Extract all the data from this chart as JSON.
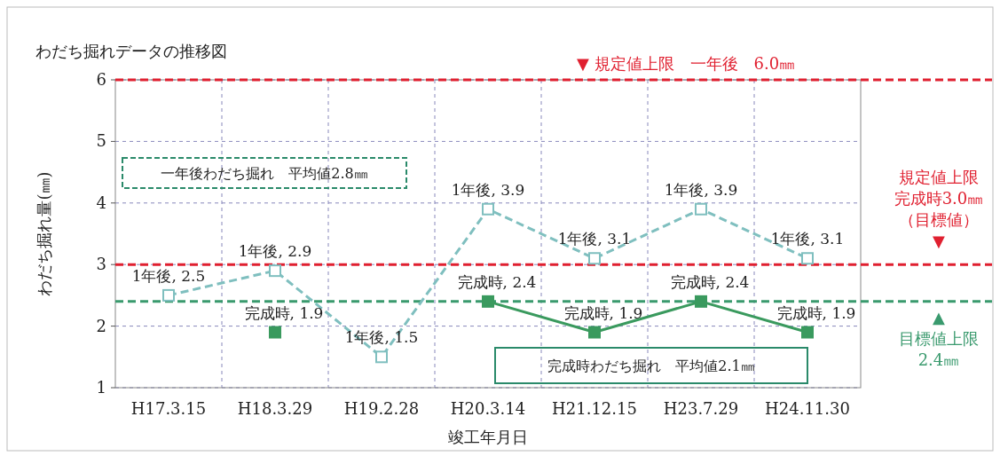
{
  "chart_data": {
    "type": "line",
    "title": "わだち掘れデータの推移図",
    "xlabel": "竣工年月日",
    "ylabel": "わだち掘れ量(㎜)",
    "categories": [
      "H17.3.15",
      "H18.3.29",
      "H19.2.28",
      "H20.3.14",
      "H21.12.15",
      "H23.7.29",
      "H24.11.30"
    ],
    "series": [
      {
        "color": "#7fbfbf",
        "line_style": "dashed",
        "marker": "square",
        "values": [
          2.5,
          2.9,
          1.5,
          3.9,
          3.1,
          3.9,
          3.1
        ],
        "value_labels": [
          "1年後, 2.5",
          "1年後, 2.9",
          "1年後, 1.5",
          "1年後, 3.9",
          "1年後, 3.1",
          "1年後, 3.9",
          "1年後, 3.1"
        ]
      },
      {
        "color": "#3a9a5e",
        "line_style": "solid",
        "marker": "square",
        "values": [
          null,
          1.9,
          null,
          2.4,
          1.9,
          2.4,
          1.9
        ],
        "value_labels": [
          null,
          "完成時, 1.9",
          null,
          "完成時, 2.4",
          "完成時, 1.9",
          "完成時, 2.4",
          "完成時, 1.9"
        ]
      }
    ],
    "ylim": [
      1,
      6
    ],
    "yticks": [
      1,
      2,
      3,
      4,
      5,
      6
    ],
    "grid": true,
    "ref_lines": [
      {
        "axis": "y",
        "value": 6.0,
        "label": "▼ 規定値上限　一年後　6.0㎜",
        "color": "#e02030",
        "line_style": "dashed"
      },
      {
        "axis": "y",
        "value": 3.0,
        "label": "規定値上限完成時3.0㎜（目標値）▼",
        "color": "#e02030",
        "line_style": "dashed"
      },
      {
        "axis": "y",
        "value": 2.4,
        "label": "▲目標値上限2.4㎜",
        "color": "#3a9a6e",
        "line_style": "dashed"
      }
    ],
    "annotations": [
      "一年後わだち掘れ　平均値2.8㎜",
      "完成時わだち掘れ　平均値2.1㎜"
    ]
  }
}
